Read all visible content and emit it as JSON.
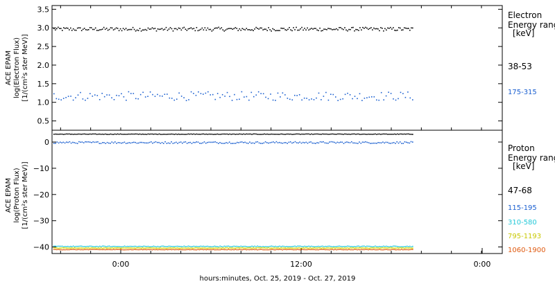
{
  "chart_data": [
    {
      "type": "scatter",
      "panel": "electron",
      "ylabel_lines": [
        "ACE EPAM",
        "log(Electron Flux)",
        "[1/(cm²s ster MeV)]"
      ],
      "yticks": [
        "3.5",
        "3.0",
        "2.5",
        "2.0",
        "1.5",
        "1.0",
        "0.5"
      ],
      "ylim": [
        0.25,
        3.6
      ],
      "legend_title": [
        "Electron",
        "Energy range",
        "[keV]"
      ],
      "series": [
        {
          "name": "38-53",
          "color": "#000000",
          "mean": 2.98,
          "spread": 0.05
        },
        {
          "name": "175-315",
          "color": "#1a5fd0",
          "mean": 1.18,
          "spread": 0.12
        }
      ]
    },
    {
      "type": "scatter",
      "panel": "proton",
      "ylabel_lines": [
        "ACE EPAM",
        "log(Proton Flux)",
        "[1/(cm²s ster MeV)]"
      ],
      "yticks": [
        "0",
        "−10",
        "−20",
        "−30",
        "−40"
      ],
      "ylim": [
        -42.5,
        4.5
      ],
      "legend_title": [
        "Proton",
        "Energy range",
        "[keV]"
      ],
      "series": [
        {
          "name": "47-68",
          "color": "#000000",
          "mean": 3.2,
          "spread": 0.1
        },
        {
          "name": "115-195",
          "color": "#1a5fd0",
          "mean": 0.0,
          "spread": 0.35
        },
        {
          "name": "310-580",
          "color": "#22c8d8",
          "mean": -39.6,
          "spread": 0.15
        },
        {
          "name": "795-1193",
          "color": "#d8d800",
          "mean": -40.2,
          "spread": 0.1
        },
        {
          "name": "1060-1900",
          "color": "#e05a10",
          "mean": -40.8,
          "spread": 0.08
        }
      ]
    }
  ],
  "x_axis": {
    "ticks": [
      "0:00",
      "12:00",
      "0:00"
    ],
    "label": "hours:minutes, Oct. 25, 2019 - Oct. 27, 2019"
  }
}
